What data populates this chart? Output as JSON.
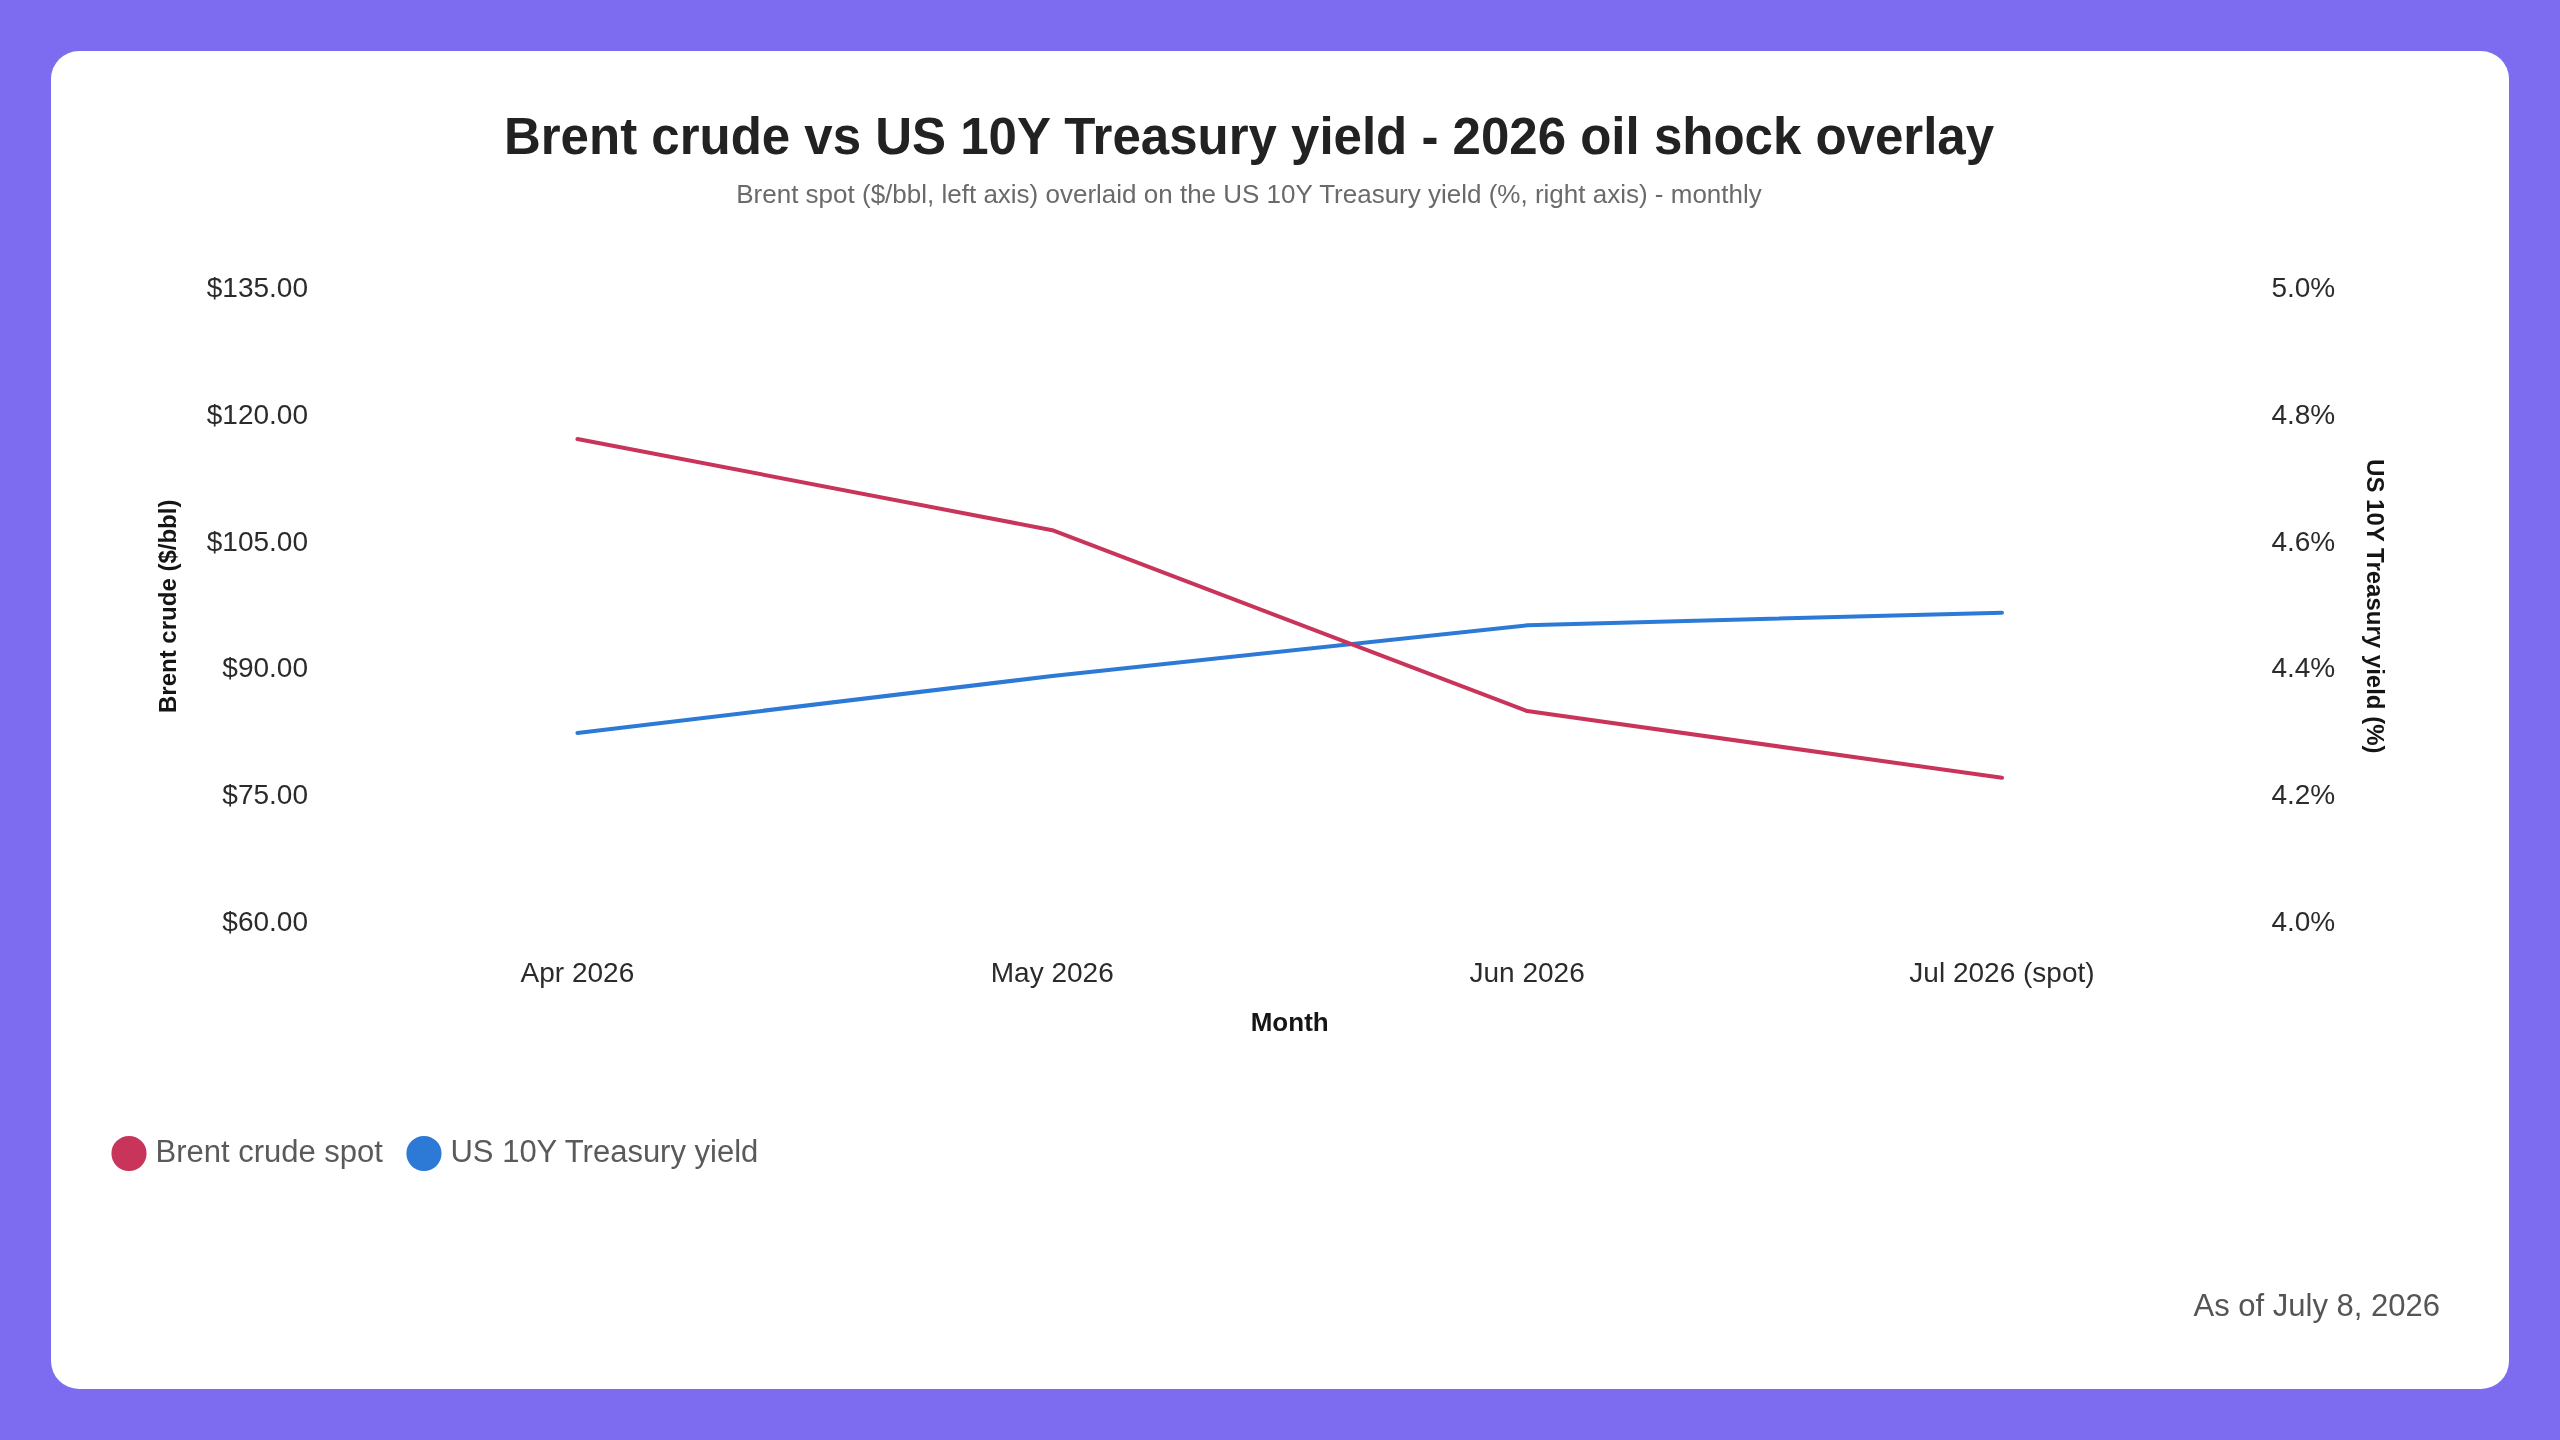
{
  "chart_data": {
    "type": "line",
    "title": "Brent crude vs US 10Y Treasury yield - 2026 oil shock overlay",
    "subtitle": "Brent spot ($/bbl, left axis) overlaid on the US 10Y Treasury yield (%, right axis) - monthly",
    "xlabel": "Month",
    "ylabel": "Brent crude ($/bbl)",
    "y2label": "US 10Y Treasury yield (%)",
    "categories": [
      "Apr 2026",
      "May 2026",
      "Jun 2026",
      "Jul 2026 (spot)"
    ],
    "series": [
      {
        "name": "Brent crude spot",
        "color": "#c8345a",
        "values": [
          117.3,
          106.5,
          85.1,
          77.2
        ]
      },
      {
        "name": "US 10Y Treasury yield",
        "color": "#2c7ad6",
        "values": [
          4.3,
          4.39,
          4.47,
          4.49
        ],
        "axis": "y2"
      }
    ],
    "ylim": [
      60,
      135
    ],
    "yticks": [
      {
        "value": 60,
        "label": "$60.00"
      },
      {
        "value": 75,
        "label": "$75.00"
      },
      {
        "value": 90,
        "label": "$90.00"
      },
      {
        "value": 105,
        "label": "$105.00"
      },
      {
        "value": 120,
        "label": "$120.00"
      },
      {
        "value": 135,
        "label": "$135.00"
      }
    ],
    "y2lim": [
      4.0,
      5.0
    ],
    "y2ticks": [
      {
        "value": 4.0,
        "label": "4.0%"
      },
      {
        "value": 4.2,
        "label": "4.2%"
      },
      {
        "value": 4.4,
        "label": "4.4%"
      },
      {
        "value": 4.6,
        "label": "4.6%"
      },
      {
        "value": 4.8,
        "label": "4.8%"
      },
      {
        "value": 5.0,
        "label": "5.0%"
      }
    ],
    "grid": false,
    "legend": "bottom left",
    "marker": "none",
    "line_style": "solid",
    "annotations": [
      "As of July 8, 2026"
    ]
  }
}
